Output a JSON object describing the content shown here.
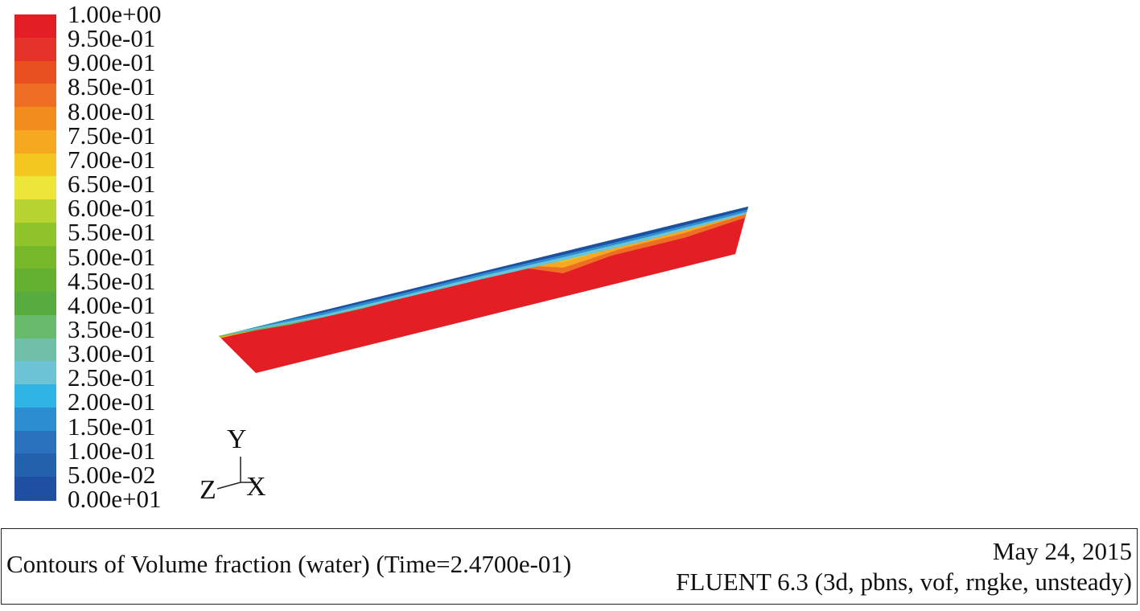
{
  "legend": {
    "labels": [
      "1.00e+00",
      "9.50e-01",
      "9.00e-01",
      "8.50e-01",
      "8.00e-01",
      "7.50e-01",
      "7.00e-01",
      "6.50e-01",
      "6.00e-01",
      "5.50e-01",
      "5.00e-01",
      "4.50e-01",
      "4.00e-01",
      "3.50e-01",
      "3.00e-01",
      "2.50e-01",
      "2.00e-01",
      "1.50e-01",
      "1.00e-01",
      "5.00e-02",
      "0.00e+01"
    ],
    "colors": [
      "#e31e24",
      "#e6332a",
      "#e9501f",
      "#ee6f24",
      "#f28c1e",
      "#f6a821",
      "#f4c620",
      "#eee53a",
      "#b8d432",
      "#8fc42a",
      "#76b82a",
      "#64b031",
      "#58ab3e",
      "#6aba6d",
      "#6fc0a7",
      "#6cc3d5",
      "#2fb4e6",
      "#2c8ed0",
      "#2a72bd",
      "#2461ad",
      "#1e4fa0"
    ]
  },
  "axes_triad": {
    "y_label": "Y",
    "z_label": "Z",
    "x_label": "X"
  },
  "footer": {
    "caption": "Contours of Volume fraction (water) (Time=2.4700e-01)",
    "date": "May 24, 2015",
    "solver": "FLUENT 6.3 (3d, pbns, vof, rngke, unsteady)"
  }
}
